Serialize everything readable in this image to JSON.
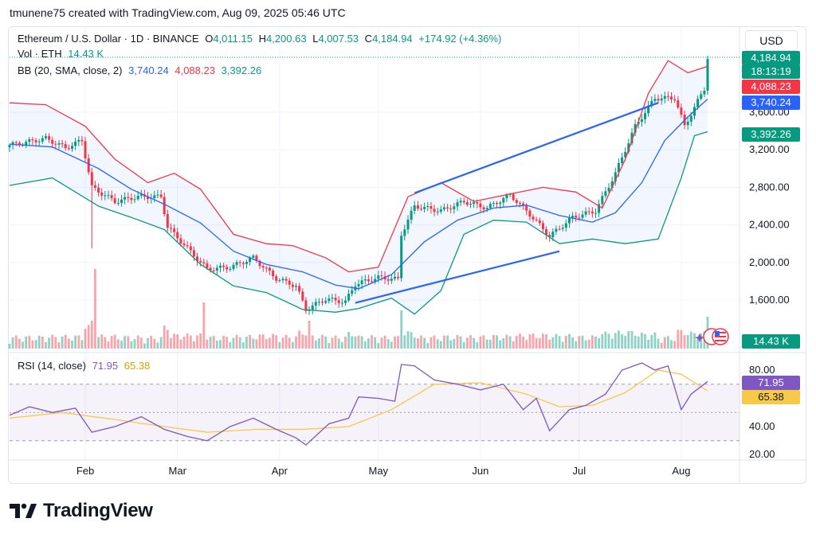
{
  "caption": "tmunene75 created with TradingView.com, Aug 09, 2025 05:46 UTC",
  "legend": {
    "symbol": "Ethereum / U.S. Dollar · 1D · BINANCE",
    "o_label": "O",
    "o_value": "4,011.15",
    "h_label": "H",
    "h_value": "4,200.63",
    "l_label": "L",
    "l_value": "4,007.53",
    "c_label": "C",
    "c_value": "4,184.94",
    "change": "+174.92 (+4.36%)",
    "vol_label": "Vol · ETH",
    "vol_value": "14.43 K",
    "bb_label": "BB (20, SMA, close, 2)",
    "bb_basis": "3,740.24",
    "bb_upper": "4,088.23",
    "bb_lower": "3,392.26",
    "rsi_label": "RSI (14, close)",
    "rsi_value": "71.95",
    "rsi_ma": "65.38"
  },
  "currency_button": "USD",
  "tags": {
    "price": "4,184.94",
    "countdown": "18:13:19",
    "upper": "4,088.23",
    "basis": "3,740.24",
    "lower": "3,392.26",
    "volume": "14.43 K",
    "rsi": "71.95",
    "rsi_ma": "65.38"
  },
  "brand": {
    "name": "TradingView"
  },
  "colors": {
    "up": "#089981",
    "down": "#f23645",
    "bb_basis": "#2962ff",
    "bb_upper": "#f23645",
    "bb_lower": "#089981",
    "rsi": "#7e57c2",
    "rsi_ma": "#f7c948",
    "trendline": "#2962ff"
  },
  "chart_data": {
    "type": "candlestick",
    "price_axis": {
      "ticks": [
        1600,
        2000,
        2400,
        2800,
        3200,
        3600
      ],
      "tick_labels": [
        "1,600.00",
        "2,000.00",
        "2,400.00",
        "2,800.00",
        "3,200.00",
        "3,600.00"
      ]
    },
    "rsi_axis": {
      "ticks": [
        20,
        40,
        80
      ],
      "tick_labels": [
        "20.00",
        "40.00",
        "80.00"
      ],
      "band": [
        30,
        70
      ]
    },
    "x_labels": [
      {
        "label": "Feb",
        "date": "2025-02-01"
      },
      {
        "label": "Mar",
        "date": "2025-03-01"
      },
      {
        "label": "Apr",
        "date": "2025-04-01"
      },
      {
        "label": "May",
        "date": "2025-05-01"
      },
      {
        "label": "Jun",
        "date": "2025-06-01"
      },
      {
        "label": "Jul",
        "date": "2025-07-01"
      },
      {
        "label": "Aug",
        "date": "2025-08-01"
      }
    ],
    "start_date": "2025-01-09",
    "end_date": "2025-08-09",
    "close_path": [
      [
        "2025-01-09",
        3250
      ],
      [
        "2025-01-14",
        3280
      ],
      [
        "2025-01-20",
        3320
      ],
      [
        "2025-01-26",
        3220
      ],
      [
        "2025-01-31",
        3300
      ],
      [
        "2025-02-03",
        2800
      ],
      [
        "2025-02-10",
        2650
      ],
      [
        "2025-02-17",
        2700
      ],
      [
        "2025-02-24",
        2700
      ],
      [
        "2025-02-26",
        2380
      ],
      [
        "2025-03-04",
        2150
      ],
      [
        "2025-03-10",
        1930
      ],
      [
        "2025-03-17",
        1950
      ],
      [
        "2025-03-24",
        2050
      ],
      [
        "2025-03-31",
        1830
      ],
      [
        "2025-04-06",
        1750
      ],
      [
        "2025-04-09",
        1500
      ],
      [
        "2025-04-15",
        1610
      ],
      [
        "2025-04-21",
        1580
      ],
      [
        "2025-04-24",
        1770
      ],
      [
        "2025-05-01",
        1840
      ],
      [
        "2025-05-07",
        1820
      ],
      [
        "2025-05-08",
        2300
      ],
      [
        "2025-05-12",
        2600
      ],
      [
        "2025-05-20",
        2550
      ],
      [
        "2025-05-27",
        2650
      ],
      [
        "2025-06-03",
        2580
      ],
      [
        "2025-06-10",
        2720
      ],
      [
        "2025-06-15",
        2550
      ],
      [
        "2025-06-22",
        2280
      ],
      [
        "2025-06-29",
        2480
      ],
      [
        "2025-07-06",
        2550
      ],
      [
        "2025-07-12",
        2950
      ],
      [
        "2025-07-18",
        3450
      ],
      [
        "2025-07-24",
        3750
      ],
      [
        "2025-07-30",
        3750
      ],
      [
        "2025-08-02",
        3450
      ],
      [
        "2025-08-05",
        3650
      ],
      [
        "2025-08-08",
        3850
      ],
      [
        "2025-08-09",
        4184.94
      ]
    ],
    "bb_upper": [
      [
        "2025-01-09",
        3700
      ],
      [
        "2025-01-20",
        3680
      ],
      [
        "2025-02-01",
        3450
      ],
      [
        "2025-02-10",
        3100
      ],
      [
        "2025-02-20",
        2850
      ],
      [
        "2025-02-28",
        2950
      ],
      [
        "2025-03-08",
        2780
      ],
      [
        "2025-03-18",
        2300
      ],
      [
        "2025-03-28",
        2200
      ],
      [
        "2025-04-05",
        2180
      ],
      [
        "2025-04-15",
        2050
      ],
      [
        "2025-04-22",
        1900
      ],
      [
        "2025-05-01",
        1950
      ],
      [
        "2025-05-10",
        2700
      ],
      [
        "2025-05-20",
        2850
      ],
      [
        "2025-05-30",
        2650
      ],
      [
        "2025-06-10",
        2730
      ],
      [
        "2025-06-20",
        2800
      ],
      [
        "2025-06-30",
        2750
      ],
      [
        "2025-07-08",
        2580
      ],
      [
        "2025-07-15",
        3100
      ],
      [
        "2025-07-22",
        3800
      ],
      [
        "2025-07-28",
        4150
      ],
      [
        "2025-08-03",
        4020
      ],
      [
        "2025-08-09",
        4088.23
      ]
    ],
    "bb_basis": [
      [
        "2025-01-09",
        3260
      ],
      [
        "2025-01-22",
        3230
      ],
      [
        "2025-02-05",
        3000
      ],
      [
        "2025-02-15",
        2780
      ],
      [
        "2025-02-25",
        2620
      ],
      [
        "2025-03-08",
        2420
      ],
      [
        "2025-03-18",
        2120
      ],
      [
        "2025-03-28",
        1980
      ],
      [
        "2025-04-08",
        1900
      ],
      [
        "2025-04-18",
        1760
      ],
      [
        "2025-04-25",
        1720
      ],
      [
        "2025-05-05",
        1870
      ],
      [
        "2025-05-15",
        2220
      ],
      [
        "2025-05-25",
        2450
      ],
      [
        "2025-06-05",
        2580
      ],
      [
        "2025-06-15",
        2610
      ],
      [
        "2025-06-25",
        2500
      ],
      [
        "2025-07-05",
        2430
      ],
      [
        "2025-07-12",
        2530
      ],
      [
        "2025-07-20",
        2850
      ],
      [
        "2025-07-27",
        3300
      ],
      [
        "2025-08-03",
        3550
      ],
      [
        "2025-08-09",
        3740.24
      ]
    ],
    "bb_lower": [
      [
        "2025-01-09",
        2820
      ],
      [
        "2025-01-22",
        2900
      ],
      [
        "2025-02-05",
        2600
      ],
      [
        "2025-02-15",
        2480
      ],
      [
        "2025-02-25",
        2350
      ],
      [
        "2025-03-08",
        1980
      ],
      [
        "2025-03-18",
        1750
      ],
      [
        "2025-03-28",
        1680
      ],
      [
        "2025-04-08",
        1500
      ],
      [
        "2025-04-18",
        1470
      ],
      [
        "2025-04-25",
        1510
      ],
      [
        "2025-05-05",
        1620
      ],
      [
        "2025-05-12",
        1450
      ],
      [
        "2025-05-20",
        1700
      ],
      [
        "2025-05-27",
        2300
      ],
      [
        "2025-06-05",
        2450
      ],
      [
        "2025-06-15",
        2430
      ],
      [
        "2025-06-25",
        2200
      ],
      [
        "2025-07-05",
        2250
      ],
      [
        "2025-07-15",
        2200
      ],
      [
        "2025-07-25",
        2250
      ],
      [
        "2025-08-01",
        2900
      ],
      [
        "2025-08-05",
        3350
      ],
      [
        "2025-08-09",
        3392.26
      ]
    ],
    "rsi": [
      [
        "2025-01-09",
        48
      ],
      [
        "2025-01-15",
        54
      ],
      [
        "2025-01-22",
        50
      ],
      [
        "2025-01-29",
        53
      ],
      [
        "2025-02-03",
        36
      ],
      [
        "2025-02-10",
        40
      ],
      [
        "2025-02-18",
        47
      ],
      [
        "2025-02-25",
        38
      ],
      [
        "2025-03-04",
        33
      ],
      [
        "2025-03-10",
        30
      ],
      [
        "2025-03-17",
        40
      ],
      [
        "2025-03-24",
        46
      ],
      [
        "2025-03-31",
        38
      ],
      [
        "2025-04-06",
        32
      ],
      [
        "2025-04-09",
        27
      ],
      [
        "2025-04-16",
        42
      ],
      [
        "2025-04-22",
        46
      ],
      [
        "2025-04-25",
        61
      ],
      [
        "2025-05-01",
        60
      ],
      [
        "2025-05-06",
        58
      ],
      [
        "2025-05-08",
        84
      ],
      [
        "2025-05-12",
        83
      ],
      [
        "2025-05-18",
        73
      ],
      [
        "2025-05-25",
        70
      ],
      [
        "2025-06-01",
        66
      ],
      [
        "2025-06-08",
        70
      ],
      [
        "2025-06-14",
        52
      ],
      [
        "2025-06-18",
        60
      ],
      [
        "2025-06-22",
        37
      ],
      [
        "2025-06-28",
        52
      ],
      [
        "2025-07-03",
        55
      ],
      [
        "2025-07-09",
        63
      ],
      [
        "2025-07-14",
        80
      ],
      [
        "2025-07-20",
        85
      ],
      [
        "2025-07-24",
        80
      ],
      [
        "2025-07-28",
        83
      ],
      [
        "2025-08-01",
        52
      ],
      [
        "2025-08-04",
        63
      ],
      [
        "2025-08-09",
        71.95
      ]
    ],
    "rsi_ma": [
      [
        "2025-01-09",
        46
      ],
      [
        "2025-01-25",
        50
      ],
      [
        "2025-02-10",
        45
      ],
      [
        "2025-02-25",
        40
      ],
      [
        "2025-03-10",
        36
      ],
      [
        "2025-03-25",
        38
      ],
      [
        "2025-04-08",
        38
      ],
      [
        "2025-04-22",
        40
      ],
      [
        "2025-05-05",
        52
      ],
      [
        "2025-05-18",
        70
      ],
      [
        "2025-06-01",
        71
      ],
      [
        "2025-06-15",
        63
      ],
      [
        "2025-06-25",
        54
      ],
      [
        "2025-07-05",
        55
      ],
      [
        "2025-07-15",
        64
      ],
      [
        "2025-07-25",
        80
      ],
      [
        "2025-08-01",
        77
      ],
      [
        "2025-08-09",
        65.38
      ]
    ],
    "trendlines": [
      {
        "from": [
          "2025-04-24",
          1570
        ],
        "to": [
          "2025-06-25",
          2120
        ]
      },
      {
        "from": [
          "2025-05-12",
          2740
        ],
        "to": [
          "2025-07-25",
          3700
        ]
      }
    ],
    "volume_tag": "14.43 K"
  }
}
